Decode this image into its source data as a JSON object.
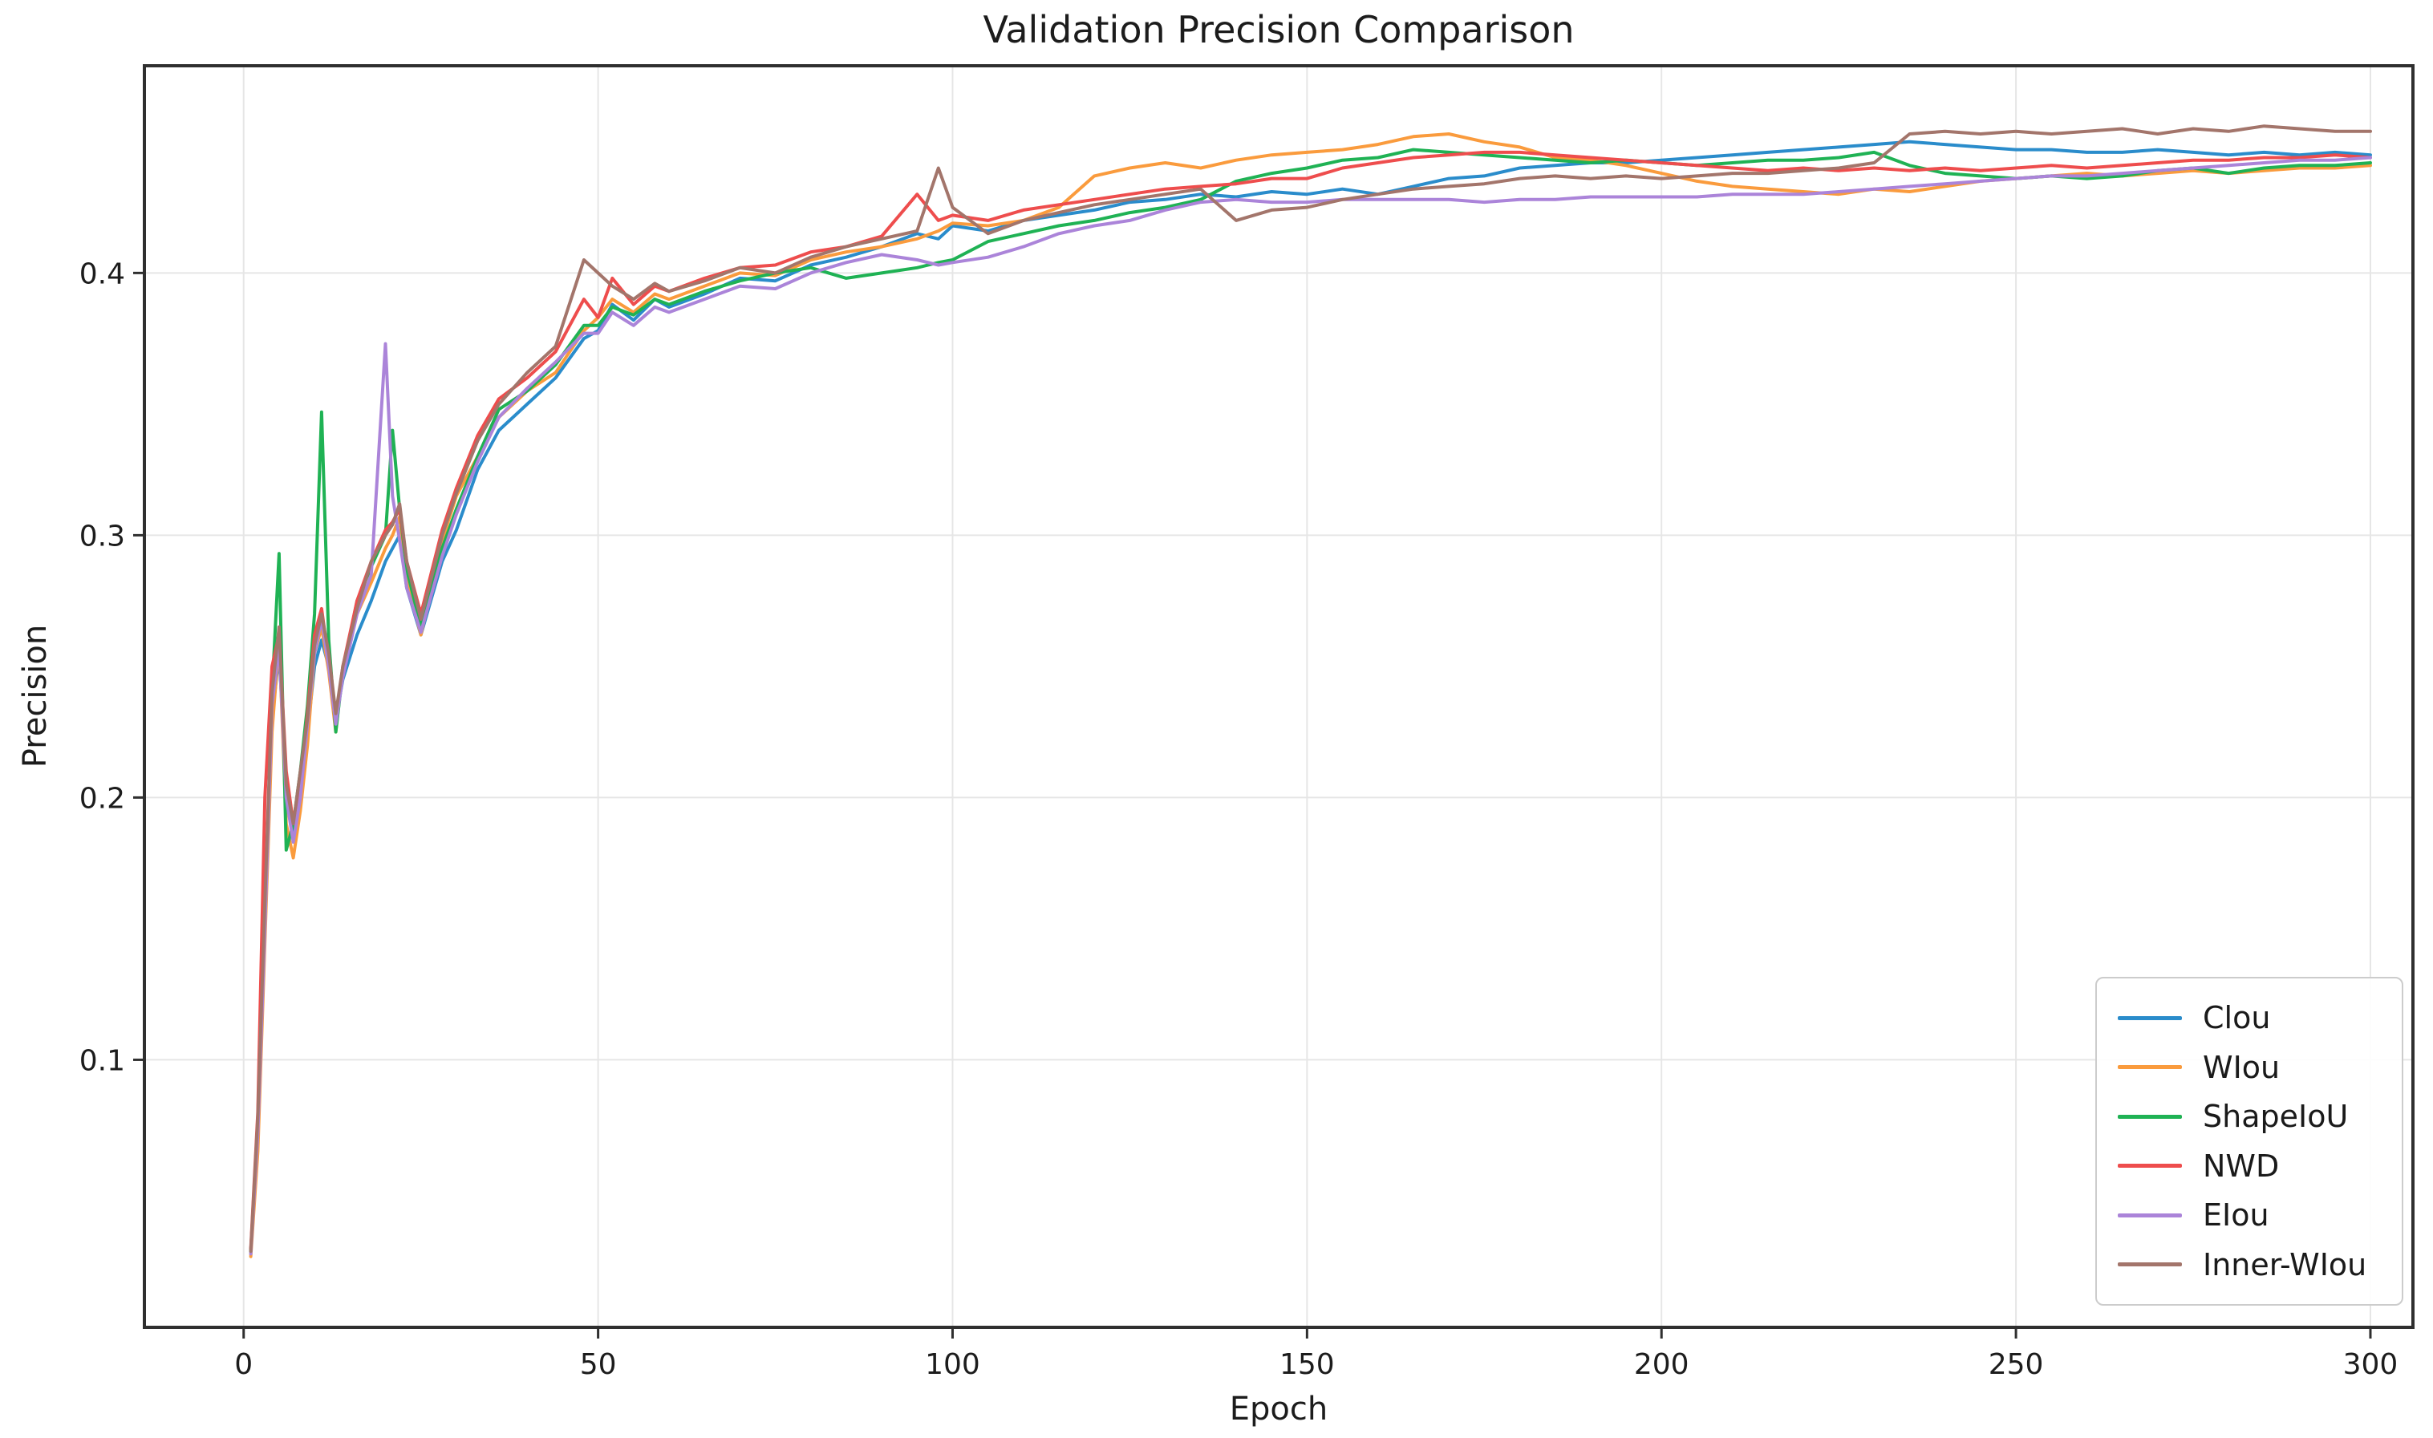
{
  "chart_data": {
    "type": "line",
    "title": "Validation Precision Comparison",
    "xlabel": "Epoch",
    "ylabel": "Precision",
    "xlim": [
      -14,
      306
    ],
    "ylim": [
      -0.002,
      0.479
    ],
    "x_ticks": [
      0,
      50,
      100,
      150,
      200,
      250,
      300
    ],
    "x_tick_labels": [
      "0",
      "50",
      "100",
      "150",
      "200",
      "250",
      "300"
    ],
    "y_ticks": [
      0.1,
      0.2,
      0.3,
      0.4
    ],
    "y_tick_labels": [
      "0.1",
      "0.2",
      "0.3",
      "0.4"
    ],
    "grid": true,
    "grid_color": "#e6e6e6",
    "spine_color": "#2f2f2f",
    "legend_position": "lower right",
    "x": [
      1,
      2,
      3,
      4,
      5,
      6,
      7,
      8,
      9,
      10,
      11,
      12,
      13,
      14,
      16,
      18,
      20,
      21,
      22,
      23,
      25,
      28,
      30,
      33,
      36,
      40,
      44,
      48,
      50,
      52,
      55,
      58,
      60,
      65,
      70,
      75,
      80,
      85,
      90,
      95,
      98,
      100,
      105,
      110,
      115,
      120,
      125,
      130,
      135,
      140,
      145,
      150,
      155,
      160,
      165,
      170,
      175,
      180,
      185,
      190,
      195,
      200,
      205,
      210,
      215,
      220,
      225,
      230,
      235,
      240,
      245,
      250,
      255,
      260,
      265,
      270,
      275,
      280,
      285,
      290,
      295,
      300
    ],
    "series": [
      {
        "name": "Clou",
        "color": "#2a8ccb",
        "values": [
          0.027,
          0.07,
          0.15,
          0.23,
          0.255,
          0.205,
          0.185,
          0.2,
          0.225,
          0.25,
          0.26,
          0.25,
          0.23,
          0.245,
          0.262,
          0.275,
          0.29,
          0.295,
          0.3,
          0.28,
          0.262,
          0.29,
          0.302,
          0.325,
          0.34,
          0.35,
          0.36,
          0.375,
          0.378,
          0.388,
          0.382,
          0.39,
          0.387,
          0.392,
          0.398,
          0.397,
          0.403,
          0.406,
          0.41,
          0.415,
          0.413,
          0.418,
          0.416,
          0.42,
          0.422,
          0.424,
          0.427,
          0.428,
          0.43,
          0.429,
          0.431,
          0.43,
          0.432,
          0.43,
          0.433,
          0.436,
          0.437,
          0.44,
          0.441,
          0.442,
          0.442,
          0.443,
          0.444,
          0.445,
          0.446,
          0.447,
          0.448,
          0.449,
          0.45,
          0.449,
          0.448,
          0.447,
          0.447,
          0.446,
          0.446,
          0.447,
          0.446,
          0.445,
          0.446,
          0.445,
          0.446,
          0.445
        ]
      },
      {
        "name": "WIou",
        "color": "#fa9b3d",
        "values": [
          0.025,
          0.065,
          0.145,
          0.225,
          0.26,
          0.19,
          0.177,
          0.195,
          0.22,
          0.255,
          0.265,
          0.248,
          0.225,
          0.25,
          0.27,
          0.282,
          0.295,
          0.3,
          0.307,
          0.283,
          0.262,
          0.298,
          0.315,
          0.33,
          0.345,
          0.355,
          0.362,
          0.378,
          0.383,
          0.39,
          0.385,
          0.392,
          0.39,
          0.395,
          0.4,
          0.399,
          0.405,
          0.408,
          0.41,
          0.413,
          0.416,
          0.419,
          0.418,
          0.42,
          0.425,
          0.437,
          0.44,
          0.442,
          0.44,
          0.443,
          0.445,
          0.446,
          0.447,
          0.449,
          0.452,
          0.453,
          0.45,
          0.448,
          0.444,
          0.443,
          0.441,
          0.438,
          0.435,
          0.433,
          0.432,
          0.431,
          0.43,
          0.432,
          0.431,
          0.433,
          0.435,
          0.436,
          0.437,
          0.438,
          0.437,
          0.438,
          0.439,
          0.438,
          0.439,
          0.44,
          0.44,
          0.441
        ]
      },
      {
        "name": "ShapeIoU",
        "color": "#1fb254",
        "values": [
          0.027,
          0.075,
          0.155,
          0.24,
          0.293,
          0.18,
          0.19,
          0.21,
          0.235,
          0.27,
          0.347,
          0.26,
          0.225,
          0.248,
          0.275,
          0.288,
          0.3,
          0.34,
          0.31,
          0.287,
          0.265,
          0.295,
          0.31,
          0.33,
          0.348,
          0.355,
          0.365,
          0.38,
          0.38,
          0.387,
          0.384,
          0.39,
          0.388,
          0.393,
          0.397,
          0.4,
          0.402,
          0.398,
          0.4,
          0.402,
          0.404,
          0.405,
          0.412,
          0.415,
          0.418,
          0.42,
          0.423,
          0.425,
          0.428,
          0.435,
          0.438,
          0.44,
          0.443,
          0.444,
          0.447,
          0.446,
          0.445,
          0.444,
          0.443,
          0.442,
          0.443,
          0.442,
          0.441,
          0.442,
          0.443,
          0.443,
          0.444,
          0.446,
          0.441,
          0.438,
          0.437,
          0.436,
          0.437,
          0.436,
          0.437,
          0.439,
          0.44,
          0.438,
          0.44,
          0.441,
          0.441,
          0.442
        ]
      },
      {
        "name": "NWD",
        "color": "#ee4d4d",
        "values": [
          0.028,
          0.08,
          0.2,
          0.25,
          0.262,
          0.21,
          0.19,
          0.205,
          0.232,
          0.262,
          0.272,
          0.252,
          0.23,
          0.25,
          0.275,
          0.29,
          0.302,
          0.305,
          0.31,
          0.29,
          0.27,
          0.302,
          0.318,
          0.338,
          0.352,
          0.36,
          0.37,
          0.39,
          0.383,
          0.398,
          0.388,
          0.395,
          0.393,
          0.398,
          0.402,
          0.403,
          0.408,
          0.41,
          0.414,
          0.43,
          0.42,
          0.422,
          0.42,
          0.424,
          0.426,
          0.428,
          0.43,
          0.432,
          0.433,
          0.434,
          0.436,
          0.436,
          0.44,
          0.442,
          0.444,
          0.445,
          0.446,
          0.446,
          0.445,
          0.444,
          0.443,
          0.442,
          0.441,
          0.44,
          0.439,
          0.44,
          0.439,
          0.44,
          0.439,
          0.44,
          0.439,
          0.44,
          0.441,
          0.44,
          0.441,
          0.442,
          0.443,
          0.443,
          0.444,
          0.444,
          0.445,
          0.444
        ]
      },
      {
        "name": "EIou",
        "color": "#ab84d9",
        "values": [
          0.026,
          0.072,
          0.15,
          0.235,
          0.258,
          0.2,
          0.183,
          0.2,
          0.228,
          0.255,
          0.268,
          0.25,
          0.228,
          0.246,
          0.27,
          0.285,
          0.373,
          0.315,
          0.298,
          0.28,
          0.263,
          0.292,
          0.308,
          0.328,
          0.345,
          0.356,
          0.366,
          0.377,
          0.377,
          0.385,
          0.38,
          0.387,
          0.385,
          0.39,
          0.395,
          0.394,
          0.4,
          0.404,
          0.407,
          0.405,
          0.403,
          0.404,
          0.406,
          0.41,
          0.415,
          0.418,
          0.42,
          0.424,
          0.427,
          0.428,
          0.427,
          0.427,
          0.428,
          0.428,
          0.428,
          0.428,
          0.427,
          0.428,
          0.428,
          0.429,
          0.429,
          0.429,
          0.429,
          0.43,
          0.43,
          0.43,
          0.431,
          0.432,
          0.433,
          0.434,
          0.435,
          0.436,
          0.437,
          0.437,
          0.438,
          0.439,
          0.44,
          0.441,
          0.442,
          0.443,
          0.443,
          0.444
        ]
      },
      {
        "name": "Inner-WIou",
        "color": "#a3756b",
        "values": [
          0.027,
          0.078,
          0.16,
          0.24,
          0.265,
          0.205,
          0.19,
          0.21,
          0.23,
          0.258,
          0.27,
          0.255,
          0.232,
          0.25,
          0.272,
          0.29,
          0.3,
          0.304,
          0.312,
          0.29,
          0.268,
          0.3,
          0.316,
          0.336,
          0.35,
          0.362,
          0.372,
          0.405,
          0.4,
          0.395,
          0.39,
          0.396,
          0.393,
          0.397,
          0.402,
          0.4,
          0.406,
          0.41,
          0.413,
          0.416,
          0.44,
          0.425,
          0.415,
          0.42,
          0.423,
          0.426,
          0.428,
          0.43,
          0.432,
          0.42,
          0.424,
          0.425,
          0.428,
          0.43,
          0.432,
          0.433,
          0.434,
          0.436,
          0.437,
          0.436,
          0.437,
          0.436,
          0.437,
          0.438,
          0.438,
          0.439,
          0.44,
          0.442,
          0.453,
          0.454,
          0.453,
          0.454,
          0.453,
          0.454,
          0.455,
          0.453,
          0.455,
          0.454,
          0.456,
          0.455,
          0.454,
          0.454
        ]
      }
    ]
  }
}
